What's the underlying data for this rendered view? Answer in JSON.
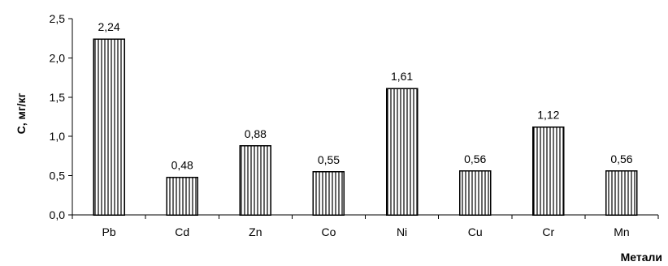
{
  "chart_data": {
    "type": "bar",
    "categories": [
      "Pb",
      "Cd",
      "Zn",
      "Co",
      "Ni",
      "Cu",
      "Cr",
      "Mn"
    ],
    "values": [
      2.24,
      0.48,
      0.88,
      0.55,
      1.61,
      0.56,
      1.12,
      0.56
    ],
    "value_labels": [
      "2,24",
      "0,48",
      "0,88",
      "0,55",
      "1,61",
      "0,56",
      "1,12",
      "0,56"
    ],
    "y_ticks": [
      0.0,
      0.5,
      1.0,
      1.5,
      2.0,
      2.5
    ],
    "y_tick_labels": [
      "0,0",
      "0,5",
      "1,0",
      "1,5",
      "2,0",
      "2,5"
    ],
    "ylim": [
      0,
      2.5
    ],
    "xlabel": "Метали",
    "ylabel": "С, мг/кг",
    "grid": false,
    "legend": "none",
    "bar_fill_pattern": "vertical-hatch",
    "colors": {
      "bar_stroke": "#000000",
      "hatch_line": "#000000",
      "background": "#ffffff"
    }
  }
}
